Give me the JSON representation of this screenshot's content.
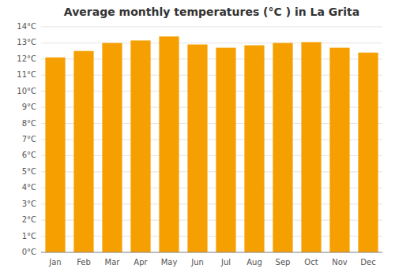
{
  "chart_data": {
    "type": "bar",
    "title": "Average monthly temperatures (°C ) in La Grita",
    "categories": [
      "Jan",
      "Feb",
      "Mar",
      "Apr",
      "May",
      "Jun",
      "Jul",
      "Aug",
      "Sep",
      "Oct",
      "Nov",
      "Dec"
    ],
    "values": [
      12.1,
      12.5,
      13.0,
      13.15,
      13.4,
      12.9,
      12.7,
      12.85,
      13.0,
      13.05,
      12.7,
      12.4
    ],
    "color": "#F5A000",
    "ylim": [
      0,
      14
    ],
    "yticks": [
      {
        "value": 0,
        "label": "0°C"
      },
      {
        "value": 1,
        "label": "1°C"
      },
      {
        "value": 2,
        "label": "2°C"
      },
      {
        "value": 3,
        "label": "3°C"
      },
      {
        "value": 4,
        "label": "4°C"
      },
      {
        "value": 5,
        "label": "5°C"
      },
      {
        "value": 6,
        "label": "6°C"
      },
      {
        "value": 7,
        "label": "7°C"
      },
      {
        "value": 8,
        "label": "8°C"
      },
      {
        "value": 9,
        "label": "9°C"
      },
      {
        "value": 10,
        "label": "10°C"
      },
      {
        "value": 11,
        "label": "11°C"
      },
      {
        "value": 12,
        "label": "12°C"
      },
      {
        "value": 13,
        "label": "13°C"
      },
      {
        "value": 14,
        "label": "14°C"
      }
    ],
    "grid": true
  }
}
